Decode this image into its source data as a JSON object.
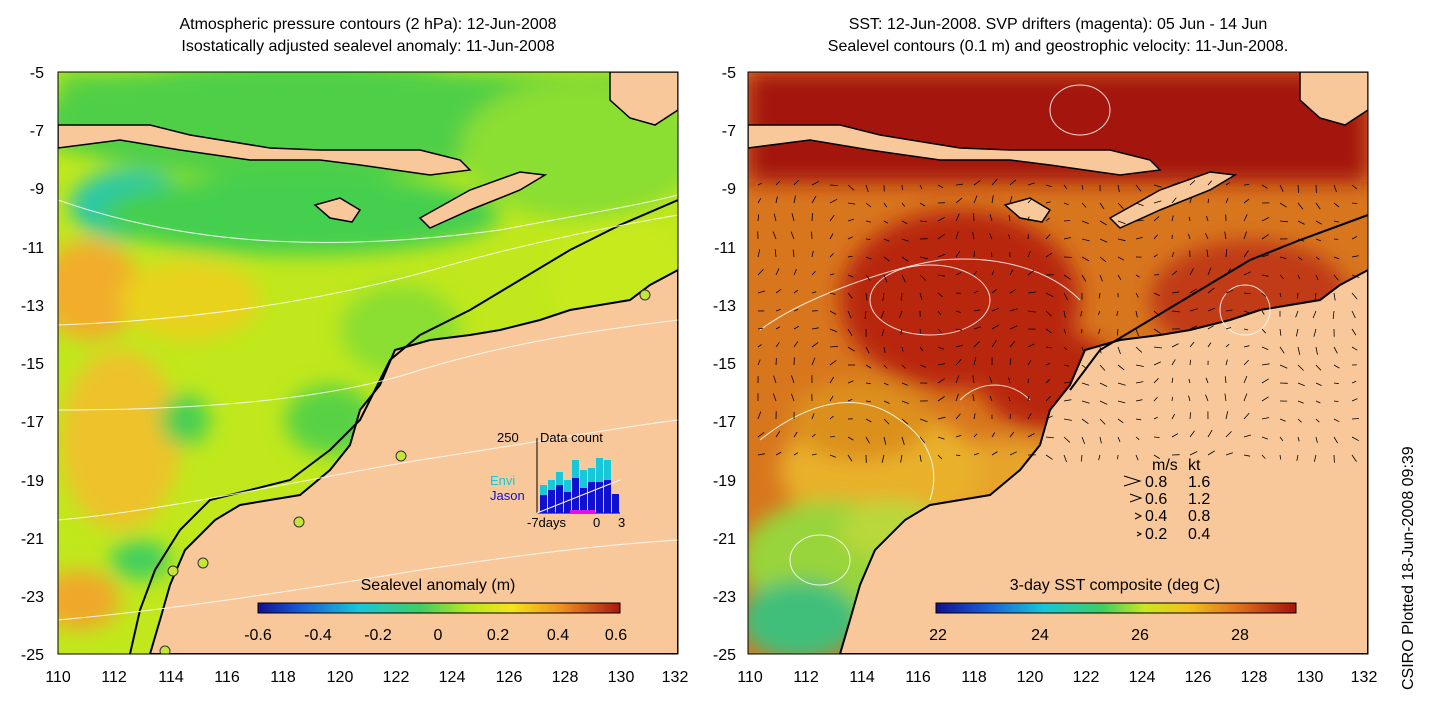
{
  "left_panel": {
    "title_line1": "Atmospheric pressure contours (2 hPa): 12-Jun-2008",
    "title_line2": "Isostatically adjusted sealevel anomaly: 11-Jun-2008",
    "colorbar_label": "Sealevel anomaly (m)",
    "colorbar_ticks": [
      "-0.6",
      "-0.4",
      "-0.2",
      "0",
      "0.2",
      "0.4",
      "0.6"
    ],
    "inset": {
      "max_label": "250",
      "title": "Data count",
      "series_a": "Envi",
      "series_b": "Jason",
      "x_labels": [
        "-7days",
        "0",
        "3"
      ]
    }
  },
  "right_panel": {
    "title_line1": "SST: 12-Jun-2008. SVP drifters (magenta): 05 Jun - 14 Jun",
    "title_line2": "Sealevel contours (0.1 m) and geostrophic velocity: 11-Jun-2008.",
    "colorbar_label": "3-day SST composite (deg C)",
    "colorbar_ticks": [
      "22",
      "24",
      "26",
      "28"
    ],
    "legend": {
      "header_ms": "m/s",
      "header_kt": "kt",
      "rows": [
        {
          "ms": "0.8",
          "kt": "1.6"
        },
        {
          "ms": "0.6",
          "kt": "1.2"
        },
        {
          "ms": "0.4",
          "kt": "0.8"
        },
        {
          "ms": "0.2",
          "kt": "0.4"
        }
      ]
    }
  },
  "axes": {
    "y_ticks": [
      "-5",
      "-7",
      "-9",
      "-11",
      "-13",
      "-15",
      "-17",
      "-19",
      "-21",
      "-23",
      "-25"
    ],
    "x_ticks": [
      "110",
      "112",
      "114",
      "116",
      "118",
      "120",
      "122",
      "124",
      "126",
      "128",
      "130",
      "132"
    ]
  },
  "credit": "CSIRO Plotted 18-Jun-2008 09:39",
  "colors": {
    "land": "#f9c89a",
    "sla_green": "#9ade2c",
    "sla_yellow": "#d3ef1c",
    "sla_orange": "#f2b42a",
    "sst_dark_red": "#a4140a",
    "sst_orange": "#e37a1e"
  }
}
